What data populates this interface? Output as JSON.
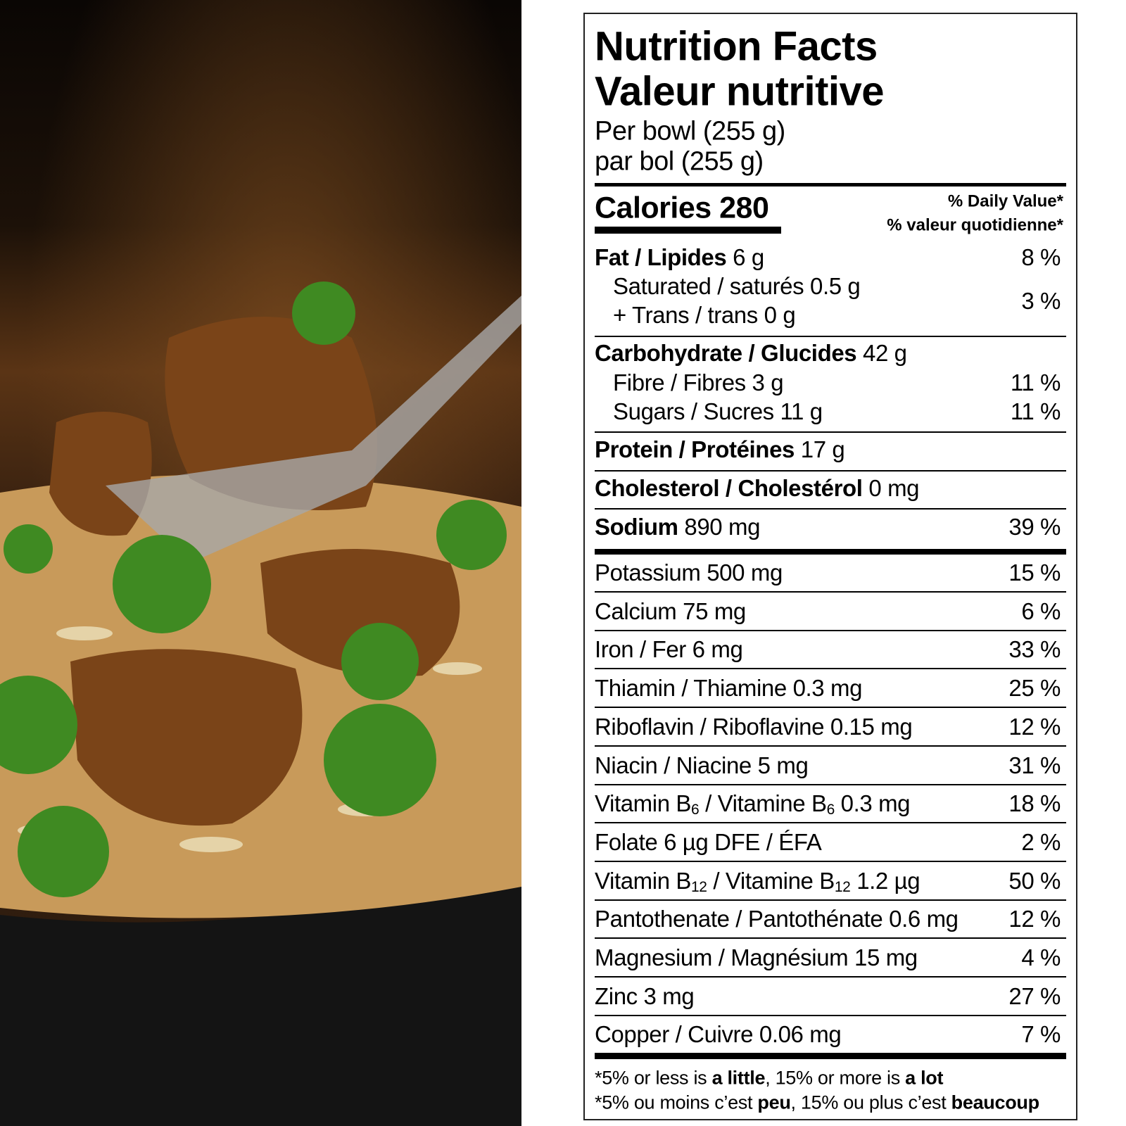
{
  "photo": {
    "description_icon": "beef-broccoli-rice-bowl-photo",
    "colors": {
      "background": "#1a0f08",
      "bowl": "#141414",
      "broccoli": "#3f8a22",
      "beef": "#6b3a16",
      "rice": "#e8d9b0"
    }
  },
  "label": {
    "title_en": "Nutrition Facts",
    "title_fr": "Valeur nutritive",
    "serving_en": "Per bowl (255 g)",
    "serving_fr": "par bol (255 g)",
    "calories": "Calories 280",
    "dv_en": "% Daily Value*",
    "dv_fr": "% valeur quotidienne*",
    "nutrients": [
      {
        "segs": [
          {
            "t": "Fat / Lipides",
            "b": true
          },
          {
            "t": " 6 g"
          }
        ],
        "dv": "8 %"
      },
      {
        "segs": [
          {
            "t": "Saturated / saturés 0.5 g"
          }
        ],
        "indent": true,
        "dv": "3 %"
      },
      {
        "segs": [
          {
            "t": "+ Trans / trans 0 g"
          }
        ],
        "indent": true
      },
      {
        "segs": [
          {
            "t": "Carbohydrate / Glucides",
            "b": true
          },
          {
            "t": " 42 g"
          }
        ]
      },
      {
        "segs": [
          {
            "t": "Fibre / Fibres 3 g"
          }
        ],
        "indent": true,
        "dv": "11 %"
      },
      {
        "segs": [
          {
            "t": "Sugars / Sucres 11 g"
          }
        ],
        "indent": true,
        "dv": "11 %"
      },
      {
        "segs": [
          {
            "t": "Protein / Protéines",
            "b": true
          },
          {
            "t": " 17 g"
          }
        ]
      },
      {
        "segs": [
          {
            "t": "Cholesterol / Cholestérol",
            "b": true
          },
          {
            "t": " 0 mg"
          }
        ]
      },
      {
        "segs": [
          {
            "t": "Sodium",
            "b": true
          },
          {
            "t": " 890 mg"
          }
        ],
        "dv": "39 %"
      },
      {
        "segs": [
          {
            "t": "Potassium 500 mg"
          }
        ],
        "dv": "15 %"
      },
      {
        "segs": [
          {
            "t": "Calcium 75 mg"
          }
        ],
        "dv": "6 %"
      },
      {
        "segs": [
          {
            "t": "Iron / Fer 6 mg"
          }
        ],
        "dv": "33 %"
      },
      {
        "segs": [
          {
            "t": "Thiamin / Thiamine 0.3 mg"
          }
        ],
        "dv": "25 %"
      },
      {
        "segs": [
          {
            "t": "Riboflavin / Riboflavine 0.15 mg"
          }
        ],
        "dv": "12 %"
      },
      {
        "segs": [
          {
            "t": "Niacin / Niacine 5 mg"
          }
        ],
        "dv": "31 %"
      },
      {
        "segs": [
          {
            "t": "Vitamin B"
          },
          {
            "t": "6",
            "sub": true
          },
          {
            "t": " / Vitamine B"
          },
          {
            "t": "6",
            "sub": true
          },
          {
            "t": " 0.3 mg"
          }
        ],
        "dv": "18 %"
      },
      {
        "segs": [
          {
            "t": "Folate 6 µg DFE / ÉFA"
          }
        ],
        "dv": "2 %"
      },
      {
        "segs": [
          {
            "t": "Vitamin B"
          },
          {
            "t": "12",
            "sub": true
          },
          {
            "t": " / Vitamine B"
          },
          {
            "t": "12",
            "sub": true
          },
          {
            "t": " 1.2 µg"
          }
        ],
        "dv": "50 %"
      },
      {
        "segs": [
          {
            "t": "Pantothenate / Pantothénate 0.6 mg"
          }
        ],
        "dv": "12 %"
      },
      {
        "segs": [
          {
            "t": "Magnesium / Magnésium 15 mg"
          }
        ],
        "dv": "4 %"
      },
      {
        "segs": [
          {
            "t": "Zinc 3 mg"
          }
        ],
        "dv": "27 %"
      },
      {
        "segs": [
          {
            "t": "Copper / Cuivre 0.06 mg"
          }
        ],
        "dv": "7 %"
      }
    ],
    "footnote_en": [
      {
        "t": "*5% or less is "
      },
      {
        "t": "a little",
        "b": true
      },
      {
        "t": ", 15% or more is "
      },
      {
        "t": "a lot",
        "b": true
      }
    ],
    "footnote_fr": [
      {
        "t": "*5% ou moins c’est "
      },
      {
        "t": "peu",
        "b": true
      },
      {
        "t": ", 15% ou plus c’est "
      },
      {
        "t": "beaucoup",
        "b": true
      }
    ]
  }
}
